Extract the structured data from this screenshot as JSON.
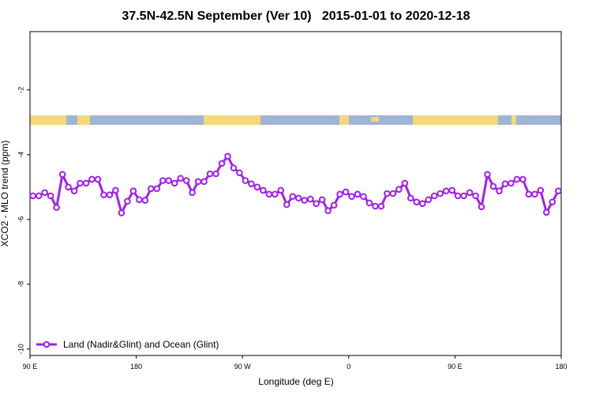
{
  "chart_data": {
    "type": "line",
    "title": "37.5N-42.5N September (Ver 10)   2015-01-01 to 2020-12-18",
    "x_label": "Longitude (deg E)",
    "y_label": "XCO2 - MLO trend (ppm)",
    "xlim": [
      90,
      540
    ],
    "ylim": [
      -10.2,
      -0.2
    ],
    "xticks": [
      {
        "value": 90,
        "label": "90 E"
      },
      {
        "value": 180,
        "label": "180"
      },
      {
        "value": 270,
        "label": "90 W"
      },
      {
        "value": 360,
        "label": "0"
      },
      {
        "value": 450,
        "label": "90 E"
      },
      {
        "value": 540,
        "label": "180"
      }
    ],
    "yticks": [
      -10,
      -8,
      -6,
      -4,
      -2
    ],
    "legend": "bottom-left",
    "x": [
      92.5,
      97.5,
      102.5,
      107.5,
      112.5,
      117.5,
      122.5,
      127.5,
      132.5,
      137.5,
      142.5,
      147.5,
      152.5,
      157.5,
      162.5,
      167.5,
      172.5,
      177.5,
      182.5,
      187.5,
      192.5,
      197.5,
      202.5,
      207.5,
      212.5,
      217.5,
      222.5,
      227.5,
      232.5,
      237.5,
      242.5,
      247.5,
      252.5,
      257.5,
      262.5,
      267.5,
      272.5,
      277.5,
      282.5,
      287.5,
      292.5,
      297.5,
      302.5,
      307.5,
      312.5,
      317.5,
      322.5,
      327.5,
      332.5,
      337.5,
      342.5,
      347.5,
      352.5,
      357.5,
      362.5,
      367.5,
      372.5,
      377.5,
      382.5,
      387.5,
      392.5,
      397.5,
      402.5,
      407.5,
      412.5,
      417.5,
      422.5,
      427.5,
      432.5,
      437.5,
      442.5,
      447.5,
      452.5,
      457.5,
      462.5,
      467.5,
      472.5,
      477.5,
      482.5,
      487.5,
      492.5,
      497.5,
      502.5,
      507.5,
      512.5,
      517.5,
      522.5,
      527.5,
      532.5,
      537.5
    ],
    "series": [
      {
        "name": "Land (Nadir&Glint) and Ocean (Glint)",
        "color": "#a020f0",
        "values": [
          -5.27,
          -5.27,
          -5.17,
          -5.27,
          -5.63,
          -4.61,
          -5.0,
          -5.12,
          -4.88,
          -4.88,
          -4.76,
          -4.76,
          -5.24,
          -5.24,
          -5.1,
          -5.8,
          -5.44,
          -5.12,
          -5.39,
          -5.41,
          -5.05,
          -5.05,
          -4.8,
          -4.8,
          -4.88,
          -4.73,
          -4.8,
          -5.17,
          -4.83,
          -4.83,
          -4.59,
          -4.59,
          -4.27,
          -4.05,
          -4.41,
          -4.56,
          -4.8,
          -4.9,
          -5.0,
          -5.1,
          -5.22,
          -5.22,
          -5.1,
          -5.54,
          -5.29,
          -5.34,
          -5.41,
          -5.37,
          -5.51,
          -5.39,
          -5.73,
          -5.56,
          -5.22,
          -5.15,
          -5.29,
          -5.22,
          -5.29,
          -5.49,
          -5.59,
          -5.59,
          -5.2,
          -5.2,
          -5.07,
          -4.88,
          -5.34,
          -5.46,
          -5.51,
          -5.39,
          -5.27,
          -5.2,
          -5.12,
          -5.1,
          -5.27,
          -5.27,
          -5.17,
          -5.27,
          -5.61,
          -4.61,
          -4.98,
          -5.12,
          -4.9,
          -4.88,
          -4.76,
          -4.76,
          -5.22,
          -5.22,
          -5.1,
          -5.78,
          -5.46,
          -5.12
        ]
      }
    ]
  }
}
